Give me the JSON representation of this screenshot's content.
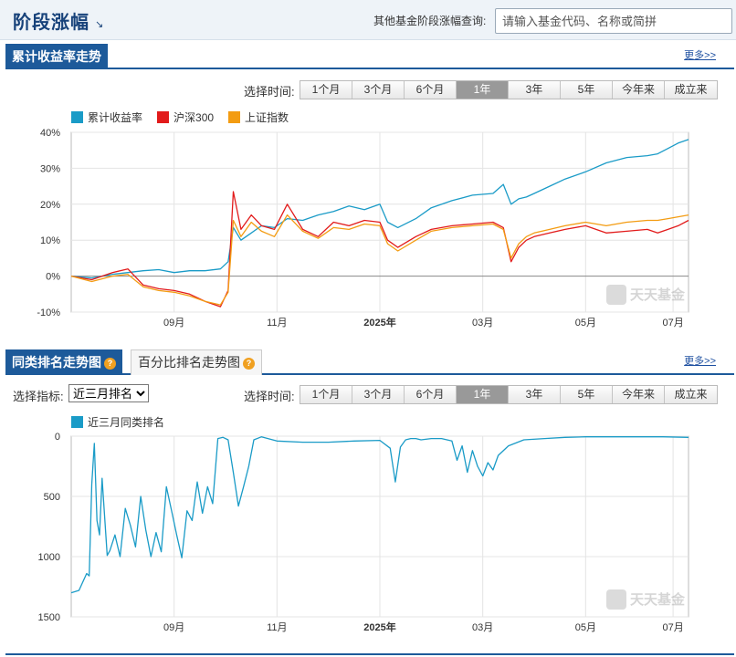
{
  "header": {
    "title": "阶段涨幅",
    "title_arrow": "↘",
    "query_label": "其他基金阶段涨幅查询:",
    "query_placeholder": "请输入基金代码、名称或简拼"
  },
  "return_section": {
    "tab_label": "累计收益率走势",
    "more_link": "更多>>",
    "range_label": "选择时间:",
    "ranges": [
      "1个月",
      "3个月",
      "6个月",
      "1年",
      "3年",
      "5年",
      "今年来",
      "成立来"
    ],
    "active_range": "1年"
  },
  "rank_section": {
    "tab_label": "同类排名走势图",
    "tab2_label": "百分比排名走势图",
    "more_link": "更多>>",
    "metric_label": "选择指标:",
    "metric_value": "近三月排名",
    "range_label": "选择时间:",
    "ranges": [
      "1个月",
      "3个月",
      "6个月",
      "1年",
      "3年",
      "5年",
      "今年来",
      "成立来"
    ],
    "active_range": "1年"
  },
  "colors": {
    "brand": "#1d5a9a",
    "fund": "#1a9bc7",
    "hs300": "#e21b1b",
    "sh_index": "#f39c12"
  },
  "icons": [
    "question-icon",
    "dropdown-arrow-icon",
    "watermark-logo"
  ],
  "watermark": "天天基金",
  "chart_data": [
    {
      "type": "line",
      "x_tick_labels": [
        "09月",
        "11月",
        "2025年",
        "03月",
        "05月",
        "07月"
      ],
      "y_tick_labels": [
        "40%",
        "30%",
        "20%",
        "10%",
        "0%",
        "-10%"
      ],
      "ylim": [
        -10,
        40
      ],
      "xlim": [
        0,
        12
      ],
      "grid": true,
      "legend_position": "top-left",
      "series": [
        {
          "name": "累计收益率",
          "color": "#1a9bc7",
          "x": [
            0,
            0.4,
            0.8,
            1.1,
            1.4,
            1.7,
            2.0,
            2.3,
            2.6,
            2.9,
            3.05,
            3.15,
            3.3,
            3.5,
            3.7,
            3.95,
            4.2,
            4.5,
            4.8,
            5.1,
            5.4,
            5.7,
            6.0,
            6.15,
            6.35,
            6.7,
            7.0,
            7.4,
            7.8,
            8.2,
            8.4,
            8.55,
            8.7,
            8.85,
            9.0,
            9.3,
            9.6,
            10.0,
            10.4,
            10.8,
            11.2,
            11.4,
            11.6,
            11.8,
            12.0
          ],
          "y": [
            0,
            -0.5,
            0.5,
            1.0,
            1.5,
            1.8,
            1.0,
            1.5,
            1.5,
            2.0,
            4.0,
            13.5,
            10.0,
            12.0,
            14.0,
            13.5,
            16.0,
            15.5,
            17.0,
            18.0,
            19.5,
            18.5,
            20.0,
            15.0,
            13.5,
            16.0,
            19.0,
            21.0,
            22.5,
            23.0,
            25.5,
            20.0,
            21.5,
            22.0,
            23.0,
            25.0,
            27.0,
            29.0,
            31.5,
            33.0,
            33.5,
            34.0,
            35.5,
            37.0,
            38.0
          ]
        },
        {
          "name": "沪深300",
          "color": "#e21b1b",
          "x": [
            0,
            0.4,
            0.8,
            1.1,
            1.4,
            1.7,
            2.0,
            2.3,
            2.6,
            2.9,
            3.05,
            3.15,
            3.3,
            3.5,
            3.7,
            3.95,
            4.2,
            4.5,
            4.8,
            5.1,
            5.4,
            5.7,
            6.0,
            6.15,
            6.35,
            6.7,
            7.0,
            7.4,
            7.8,
            8.2,
            8.4,
            8.55,
            8.7,
            8.85,
            9.0,
            9.3,
            9.6,
            10.0,
            10.4,
            10.8,
            11.2,
            11.4,
            11.6,
            11.8,
            12.0
          ],
          "y": [
            0,
            -1.0,
            1.0,
            2.0,
            -2.5,
            -3.5,
            -4.0,
            -5.0,
            -7.0,
            -8.5,
            -4.0,
            23.5,
            13.0,
            17.0,
            14.0,
            13.0,
            20.0,
            13.0,
            11.0,
            15.0,
            14.0,
            15.5,
            15.0,
            10.0,
            8.0,
            11.0,
            13.0,
            14.0,
            14.5,
            15.0,
            13.5,
            4.0,
            8.0,
            10.0,
            11.0,
            12.0,
            13.0,
            14.0,
            12.0,
            12.5,
            13.0,
            12.0,
            13.0,
            14.0,
            15.5
          ]
        },
        {
          "name": "上证指数",
          "color": "#f39c12",
          "x": [
            0,
            0.4,
            0.8,
            1.1,
            1.4,
            1.7,
            2.0,
            2.3,
            2.6,
            2.9,
            3.05,
            3.15,
            3.3,
            3.5,
            3.7,
            3.95,
            4.2,
            4.5,
            4.8,
            5.1,
            5.4,
            5.7,
            6.0,
            6.15,
            6.35,
            6.7,
            7.0,
            7.4,
            7.8,
            8.2,
            8.4,
            8.55,
            8.7,
            8.85,
            9.0,
            9.3,
            9.6,
            10.0,
            10.4,
            10.8,
            11.2,
            11.4,
            11.6,
            11.8,
            12.0
          ],
          "y": [
            0,
            -1.5,
            0,
            0.5,
            -3.0,
            -4.0,
            -4.5,
            -5.5,
            -7.0,
            -8.0,
            -4.5,
            15.5,
            11.0,
            15.0,
            12.5,
            11.0,
            17.0,
            12.5,
            10.5,
            13.5,
            13.0,
            14.5,
            14.0,
            9.0,
            7.0,
            10.0,
            12.5,
            13.5,
            14.0,
            14.5,
            13.0,
            5.0,
            9.0,
            11.0,
            12.0,
            13.0,
            14.0,
            15.0,
            14.0,
            15.0,
            15.5,
            15.5,
            16.0,
            16.5,
            17.0
          ]
        }
      ]
    },
    {
      "type": "line",
      "x_tick_labels": [
        "09月",
        "11月",
        "2025年",
        "03月",
        "05月",
        "07月"
      ],
      "y_tick_labels": [
        "0",
        "500",
        "1000",
        "1500"
      ],
      "ylim": [
        0,
        1500
      ],
      "y_inverted": true,
      "xlim": [
        0,
        12
      ],
      "grid": true,
      "legend_position": "top-left",
      "series": [
        {
          "name": "近三月同类排名",
          "color": "#1a9bc7",
          "x": [
            0,
            0.15,
            0.3,
            0.35,
            0.4,
            0.45,
            0.5,
            0.55,
            0.6,
            0.7,
            0.75,
            0.85,
            0.95,
            1.05,
            1.15,
            1.25,
            1.35,
            1.45,
            1.55,
            1.65,
            1.75,
            1.85,
            1.95,
            2.05,
            2.15,
            2.25,
            2.35,
            2.45,
            2.55,
            2.65,
            2.75,
            2.85,
            2.95,
            3.05,
            3.15,
            3.25,
            3.35,
            3.45,
            3.55,
            3.7,
            4.0,
            4.5,
            5.0,
            5.5,
            6.0,
            6.2,
            6.3,
            6.4,
            6.5,
            6.6,
            6.7,
            6.8,
            7.0,
            7.2,
            7.4,
            7.5,
            7.6,
            7.7,
            7.8,
            7.9,
            8.0,
            8.1,
            8.2,
            8.3,
            8.5,
            8.8,
            9.2,
            9.6,
            10.0,
            10.5,
            11.0,
            11.5,
            12.0
          ],
          "y": [
            1300,
            1280,
            1140,
            1160,
            400,
            60,
            700,
            820,
            350,
            990,
            950,
            820,
            1000,
            600,
            740,
            920,
            500,
            780,
            1000,
            800,
            960,
            420,
            620,
            820,
            1010,
            620,
            700,
            380,
            640,
            420,
            560,
            20,
            10,
            30,
            300,
            580,
            420,
            250,
            30,
            5,
            40,
            50,
            50,
            40,
            35,
            100,
            380,
            90,
            30,
            20,
            20,
            30,
            20,
            20,
            40,
            200,
            80,
            300,
            120,
            250,
            330,
            220,
            280,
            160,
            80,
            30,
            20,
            10,
            5,
            5,
            5,
            5,
            10
          ]
        }
      ]
    }
  ]
}
